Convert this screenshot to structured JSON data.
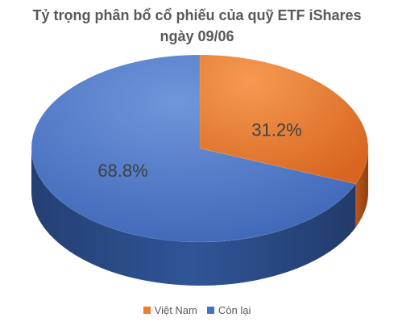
{
  "chart_data": {
    "type": "pie",
    "style": "3d",
    "title": "Tỷ trọng phân bổ cổ phiếu của quỹ ETF iShares",
    "subtitle": "ngày 09/06",
    "categories": [
      "Việt Nam",
      "Còn lại"
    ],
    "values": [
      31.2,
      68.8
    ],
    "value_labels": [
      "31.2%",
      "68.8%"
    ],
    "colors": [
      "#ED7D31",
      "#4472C4"
    ],
    "legend_position": "bottom"
  }
}
